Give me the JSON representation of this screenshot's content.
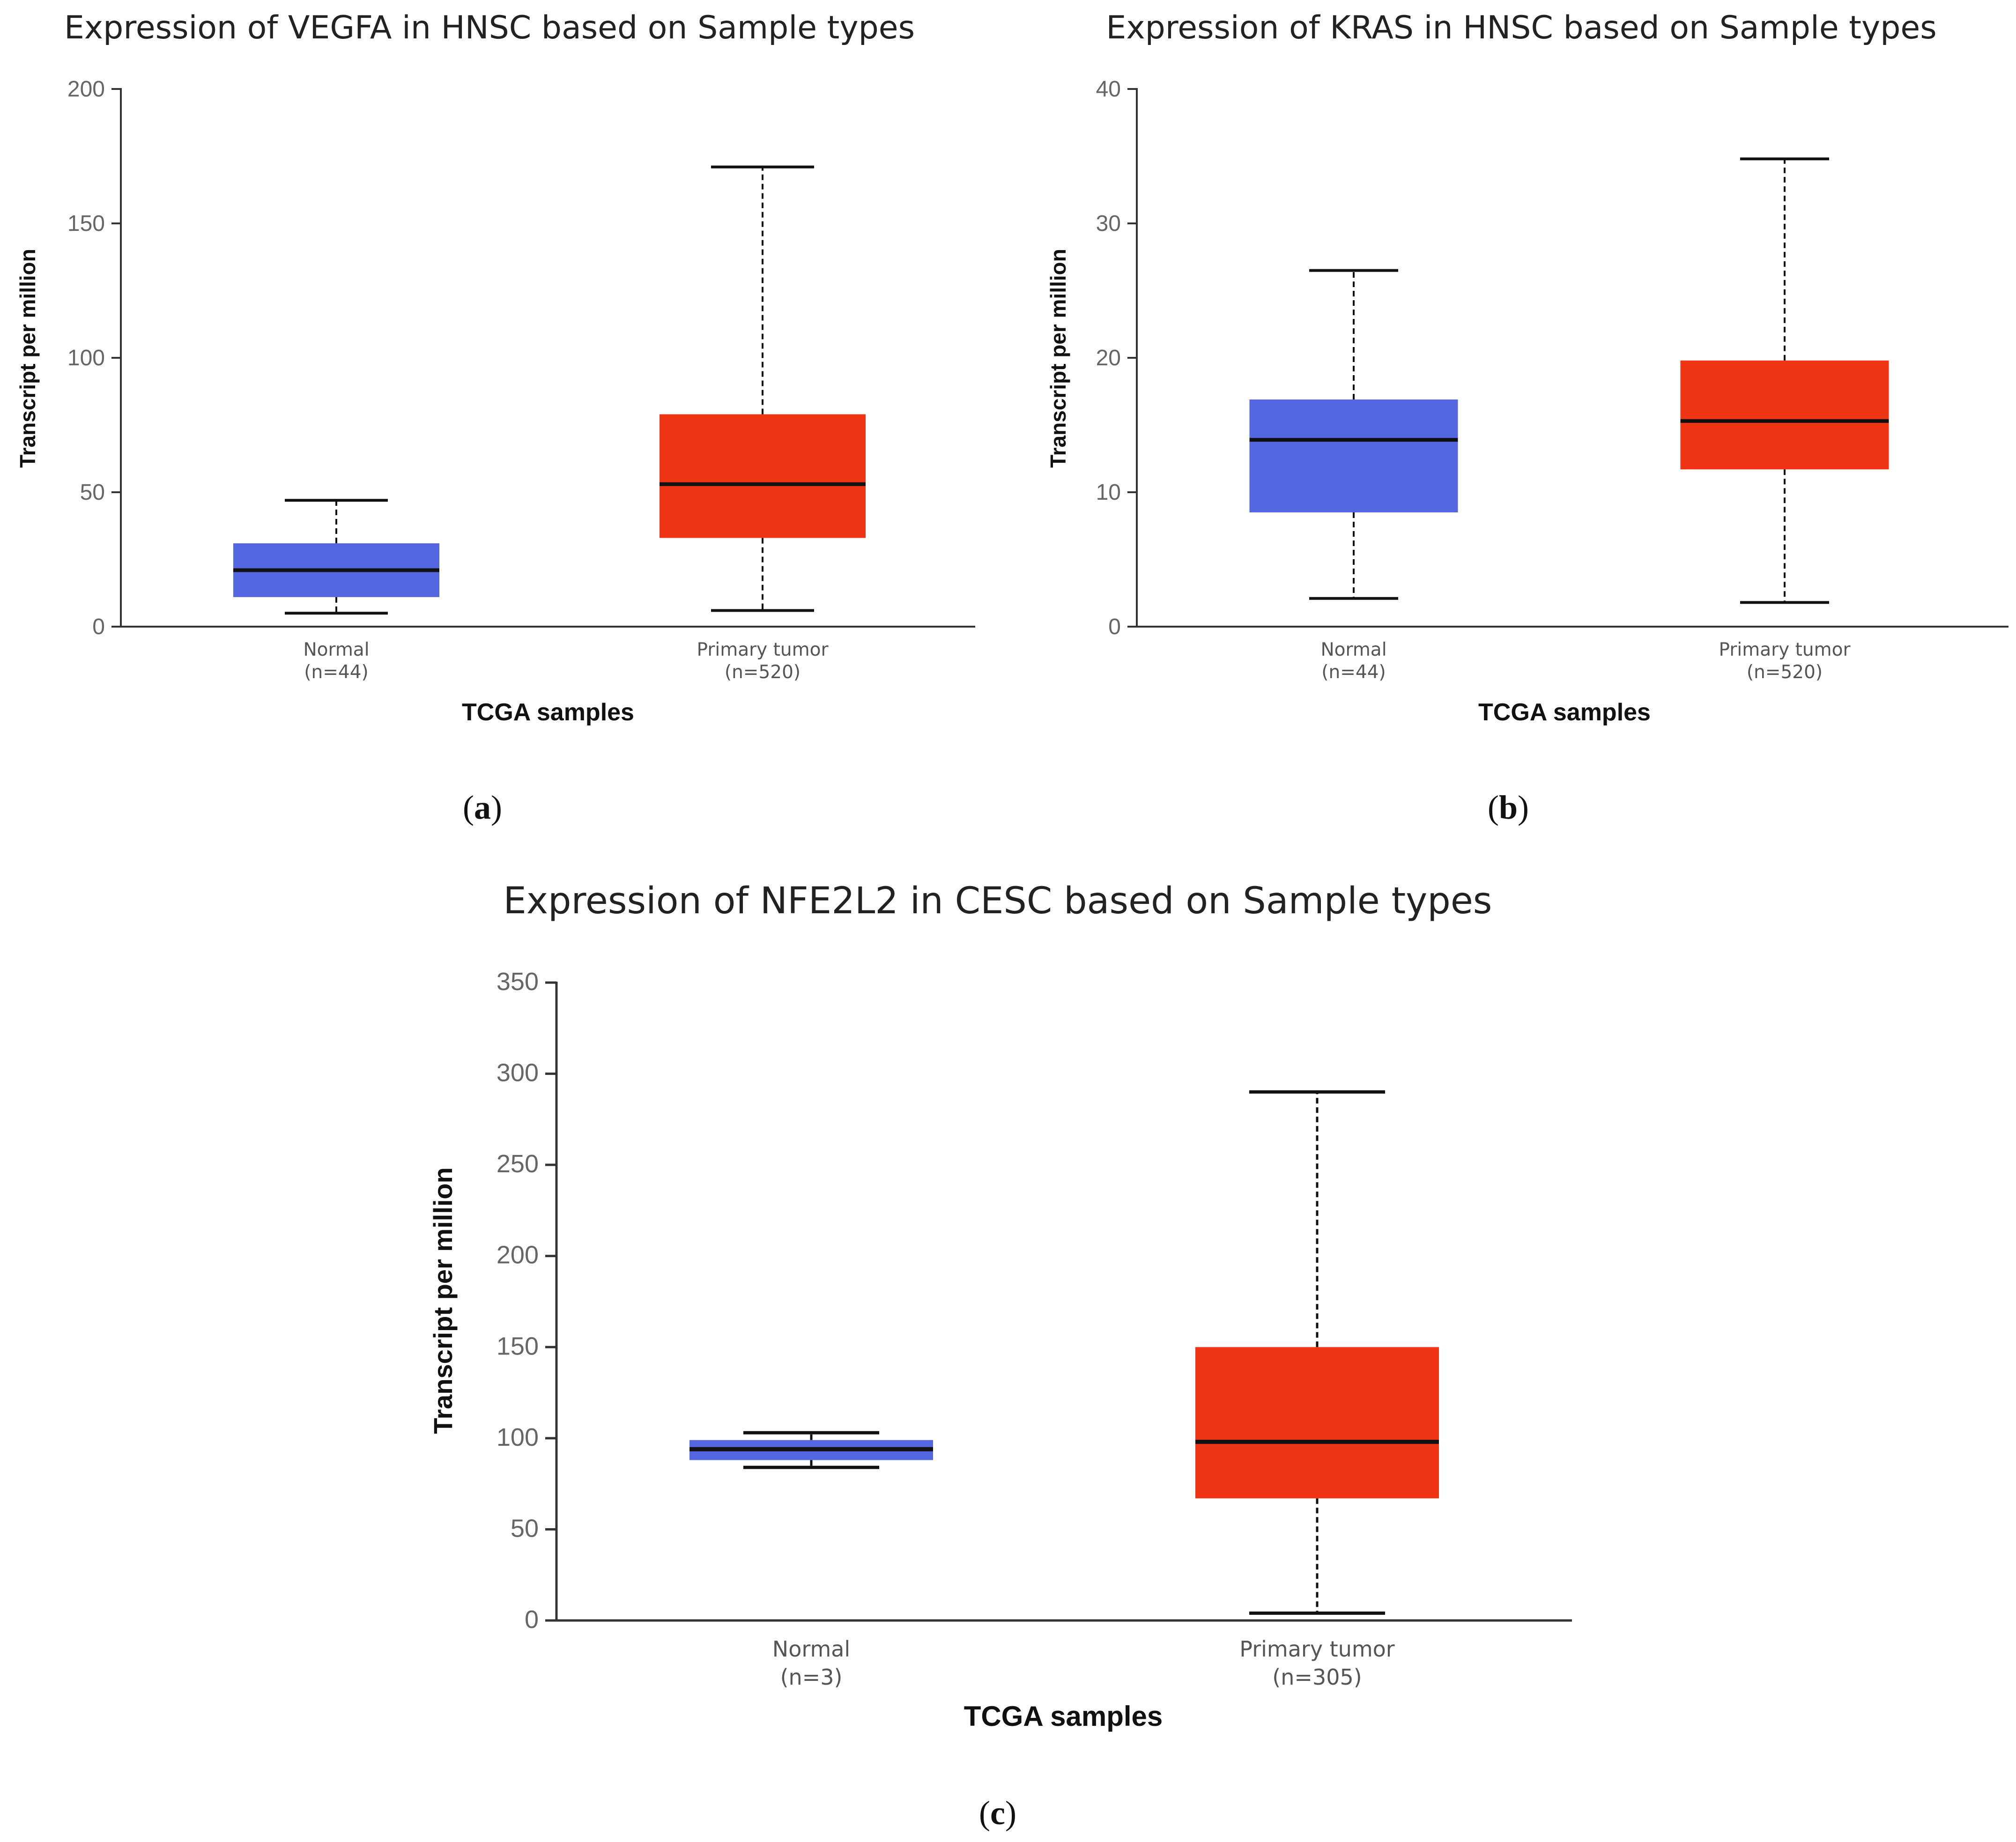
{
  "colors": {
    "normal": "#5566e1",
    "tumor": "#ef3513",
    "median": "#111111",
    "axis": "#333333"
  },
  "chart_data": [
    {
      "id": "a",
      "type": "boxplot",
      "title": "Expression of VEGFA in HNSC based on Sample types",
      "ylabel": "Transcript per million",
      "xlabel": "TCGA samples",
      "ylim": [
        0,
        200
      ],
      "yticks": [
        0,
        50,
        100,
        150,
        200
      ],
      "panel_label": "a",
      "boxes": [
        {
          "name": "Normal",
          "n": "(n=44)",
          "min": 5,
          "q1": 11,
          "median": 21,
          "q3": 31,
          "max": 47,
          "color_key": "normal"
        },
        {
          "name": "Primary tumor",
          "n": "(n=520)",
          "min": 6,
          "q1": 33,
          "median": 53,
          "q3": 79,
          "max": 171,
          "color_key": "tumor"
        }
      ]
    },
    {
      "id": "b",
      "type": "boxplot",
      "title": "Expression of KRAS in HNSC based on Sample types",
      "ylabel": "Transcript per million",
      "xlabel": "TCGA samples",
      "ylim": [
        0,
        40
      ],
      "yticks": [
        0,
        10,
        20,
        30,
        40
      ],
      "panel_label": "b",
      "boxes": [
        {
          "name": "Normal",
          "n": "(n=44)",
          "min": 2.1,
          "q1": 8.5,
          "median": 13.9,
          "q3": 16.9,
          "max": 26.5,
          "color_key": "normal"
        },
        {
          "name": "Primary tumor",
          "n": "(n=520)",
          "min": 1.8,
          "q1": 11.7,
          "median": 15.3,
          "q3": 19.8,
          "max": 34.8,
          "color_key": "tumor"
        }
      ]
    },
    {
      "id": "c",
      "type": "boxplot",
      "title": "Expression of NFE2L2 in CESC based on Sample types",
      "ylabel": "Transcript per million",
      "xlabel": "TCGA samples",
      "ylim": [
        0,
        350
      ],
      "yticks": [
        0,
        50,
        100,
        150,
        200,
        250,
        300,
        350
      ],
      "panel_label": "c",
      "boxes": [
        {
          "name": "Normal",
          "n": "(n=3)",
          "min": 84,
          "q1": 88,
          "median": 94,
          "q3": 99,
          "max": 103,
          "color_key": "normal"
        },
        {
          "name": "Primary tumor",
          "n": "(n=305)",
          "min": 4,
          "q1": 67,
          "median": 98,
          "q3": 150,
          "max": 290,
          "color_key": "tumor"
        }
      ]
    }
  ]
}
